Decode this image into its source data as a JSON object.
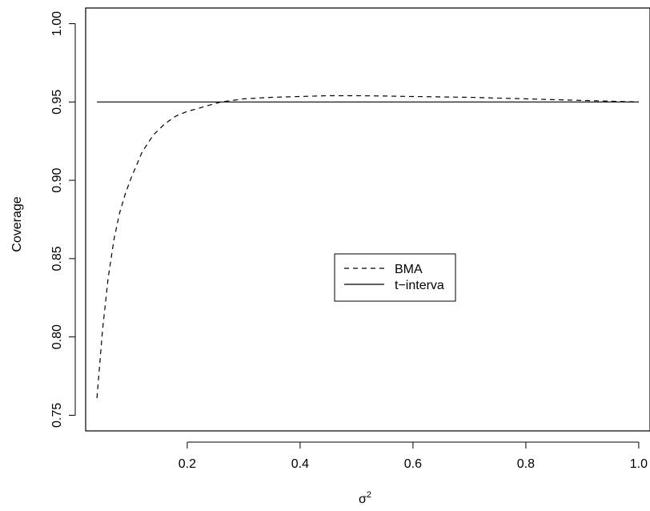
{
  "chart_data": {
    "type": "line",
    "xlabel": "σ",
    "xlabel_superscript": "2",
    "ylabel": "Coverage",
    "xlim": [
      0.02,
      1.02
    ],
    "ylim": [
      0.74,
      1.01
    ],
    "x_ticks": [
      0.2,
      0.4,
      0.6,
      0.8,
      1.0
    ],
    "x_tick_labels": [
      "0.2",
      "0.4",
      "0.6",
      "0.8",
      "1.0"
    ],
    "y_ticks": [
      0.75,
      0.8,
      0.85,
      0.9,
      0.95,
      1.0
    ],
    "y_tick_labels": [
      "0.75",
      "0.80",
      "0.85",
      "0.90",
      "0.95",
      "1.00"
    ],
    "legend_position": "center-right",
    "series": [
      {
        "name": "BMA",
        "line_style": "dashed",
        "color": "#000000",
        "x": [
          0.04,
          0.05,
          0.06,
          0.07,
          0.08,
          0.09,
          0.1,
          0.12,
          0.14,
          0.16,
          0.18,
          0.2,
          0.22,
          0.24,
          0.26,
          0.28,
          0.3,
          0.35,
          0.4,
          0.45,
          0.5,
          0.55,
          0.6,
          0.7,
          0.8,
          0.9,
          1.0
        ],
        "y": [
          0.761,
          0.805,
          0.838,
          0.862,
          0.879,
          0.891,
          0.901,
          0.918,
          0.929,
          0.936,
          0.941,
          0.944,
          0.946,
          0.948,
          0.95,
          0.951,
          0.952,
          0.953,
          0.9535,
          0.954,
          0.954,
          0.9538,
          0.9535,
          0.953,
          0.952,
          0.951,
          0.95
        ]
      },
      {
        "name": "t−interva",
        "line_style": "solid",
        "color": "#000000",
        "x": [
          0.04,
          1.0
        ],
        "y": [
          0.95,
          0.95
        ]
      }
    ]
  }
}
